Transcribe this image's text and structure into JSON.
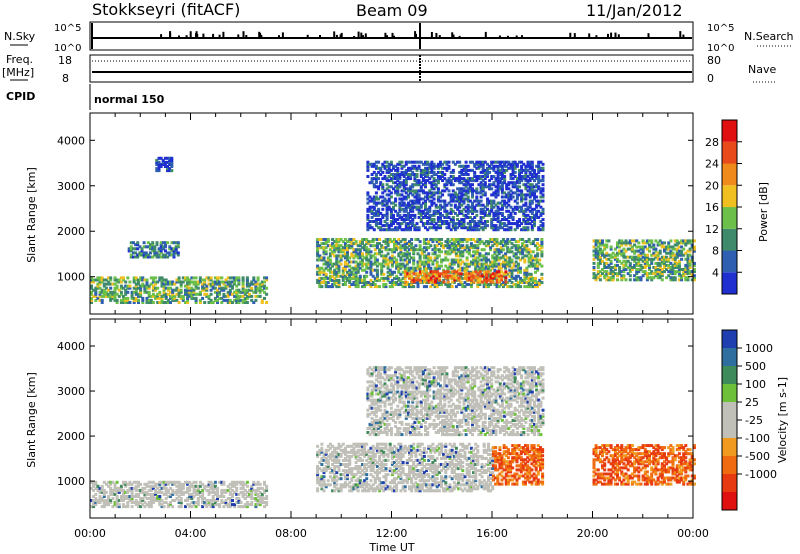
{
  "header": {
    "station": "Stokkseyri (fitACF)",
    "beam": "Beam 09",
    "date": "11/Jan/2012"
  },
  "strips": {
    "nsky_label": "N.Sky",
    "nsearch_label": "N.Search",
    "nsky_ticks": [
      "10^5",
      "10^0"
    ],
    "nsearch_ticks": [
      "10^5",
      "10^0"
    ],
    "freq_label_line1": "Freq.",
    "freq_label_line2": "[MHz]",
    "freq_ticks": [
      "18",
      "8"
    ],
    "nave_label": "Nave",
    "nave_ticks": [
      "80",
      "0"
    ],
    "cpid_label": "CPID",
    "cpid_value": "normal 150"
  },
  "colors": {
    "power_scale": [
      "#1f2fd0",
      "#2f5fb0",
      "#3e8a6a",
      "#6cc04a",
      "#f0c020",
      "#f08a1a",
      "#e84a1a",
      "#e01010"
    ],
    "velocity_scale": [
      "#1f3fb0",
      "#2f6fa0",
      "#3e8a5a",
      "#6cc03a",
      "#c0c0b8",
      "#c0c0b8",
      "#f09a20",
      "#f06a10",
      "#e83a10",
      "#e01010"
    ],
    "ground_scatter": "#c0c0b8"
  },
  "chart_data": [
    {
      "type": "heatmap",
      "panel": "power",
      "xlabel": "Time UT",
      "ylabel": "Slant Range [km]",
      "xlim": [
        "00:00",
        "24:00"
      ],
      "xticks": [
        "00:00",
        "04:00",
        "08:00",
        "12:00",
        "16:00",
        "20:00",
        "00:00"
      ],
      "ylim": [
        180,
        4600
      ],
      "yticks": [
        1000,
        2000,
        3000,
        4000
      ],
      "colorbar_label": "Power [dB]",
      "colorbar_ticks": [
        4,
        8,
        12,
        16,
        20,
        24,
        28
      ],
      "regions": [
        {
          "t0": 0.0,
          "t1": 7.0,
          "r0": 400,
          "r1": 950,
          "level": 16
        },
        {
          "t0": 1.5,
          "t1": 3.5,
          "r0": 1400,
          "r1": 1750,
          "level": 10
        },
        {
          "t0": 2.6,
          "t1": 3.2,
          "r0": 3300,
          "r1": 3600,
          "level": 6
        },
        {
          "t0": 9.0,
          "t1": 18.0,
          "r0": 750,
          "r1": 1800,
          "level": 14
        },
        {
          "t0": 12.5,
          "t1": 16.5,
          "r0": 850,
          "r1": 1100,
          "level": 28
        },
        {
          "t0": 11.0,
          "t1": 18.0,
          "r0": 2000,
          "r1": 3500,
          "level": 8
        },
        {
          "t0": 20.0,
          "t1": 24.0,
          "r0": 900,
          "r1": 1800,
          "level": 14
        }
      ]
    },
    {
      "type": "heatmap",
      "panel": "velocity",
      "xlabel": "Time UT",
      "ylabel": "Slant Range [km]",
      "xlim": [
        "00:00",
        "24:00"
      ],
      "xticks": [
        "00:00",
        "04:00",
        "08:00",
        "12:00",
        "16:00",
        "20:00",
        "00:00"
      ],
      "ylim": [
        180,
        4600
      ],
      "yticks": [
        1000,
        2000,
        3000,
        4000
      ],
      "colorbar_label": "Velocity [m s-1]",
      "colorbar_ticks": [
        1000,
        500,
        100,
        25,
        -25,
        -100,
        -500,
        -1000
      ],
      "regions": [
        {
          "t0": 0.0,
          "t1": 7.0,
          "r0": 400,
          "r1": 950,
          "level": 0
        },
        {
          "t0": 9.0,
          "t1": 16.0,
          "r0": 750,
          "r1": 1800,
          "level": 0
        },
        {
          "t0": 16.0,
          "t1": 18.0,
          "r0": 900,
          "r1": 1800,
          "level": -700
        },
        {
          "t0": 11.0,
          "t1": 18.0,
          "r0": 2000,
          "r1": 3500,
          "level": 0
        },
        {
          "t0": 20.0,
          "t1": 24.0,
          "r0": 900,
          "r1": 1800,
          "level": -700
        }
      ]
    }
  ]
}
